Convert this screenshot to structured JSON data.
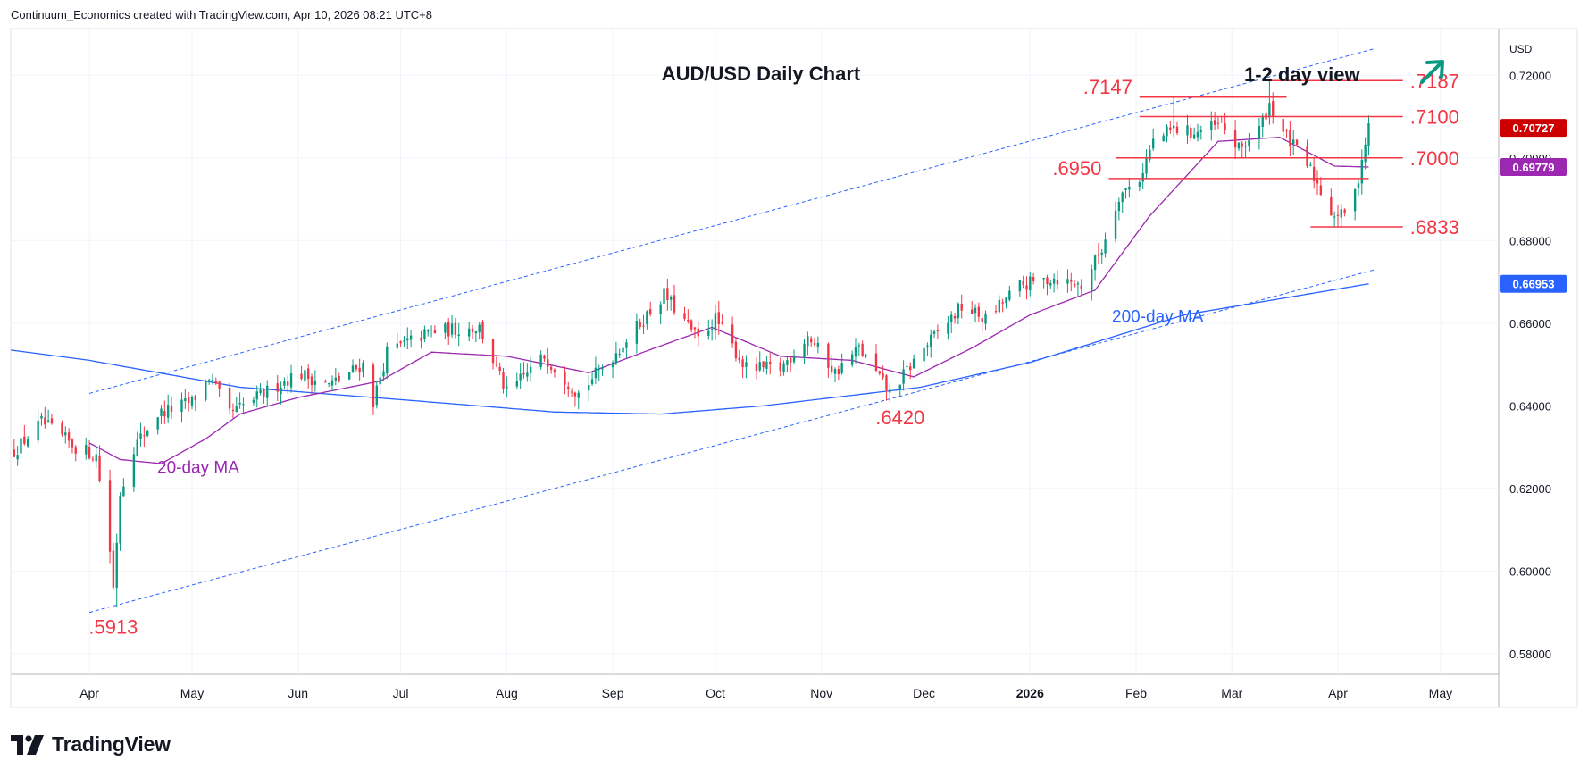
{
  "header": {
    "text": "Continuum_Economics created with TradingView.com, Apr 10, 2026 08:21 UTC+8"
  },
  "branding": {
    "logo_text": "TradingView",
    "logo_icon": "tradingview-logo-icon"
  },
  "colors": {
    "up": "#089981",
    "down": "#f23645",
    "ma20": "#9c27b0",
    "ma200": "#2962ff",
    "level_line": "#f23645",
    "level_text": "#f23645",
    "channel": "#2962ff",
    "arrow": "#089981",
    "price_tag": "#cc0000",
    "ma20_tag": "#9c27b0",
    "ma200_tag": "#2962ff"
  },
  "chart_data": {
    "type": "candlestick",
    "title": "AUD/USD Daily Chart",
    "view_label": "1-2 day view",
    "view_icon": "up-right-arrow-icon",
    "currency": "USD",
    "ylim": [
      0.575,
      0.7313
    ],
    "y_ticks": [
      0.58,
      0.6,
      0.62,
      0.64,
      0.66,
      0.68,
      0.7,
      0.72
    ],
    "y_tick_labels": [
      "0.58000",
      "0.60000",
      "0.62000",
      "0.64000",
      "0.66000",
      "0.68000",
      "0.70000",
      "0.72000"
    ],
    "x_axis": {
      "start": "2025-03-09",
      "end": "2026-05-18",
      "ticks": [
        {
          "label": "Apr",
          "date": "2025-04-01"
        },
        {
          "label": "May",
          "date": "2025-05-01"
        },
        {
          "label": "Jun",
          "date": "2025-06-01"
        },
        {
          "label": "Jul",
          "date": "2025-07-01"
        },
        {
          "label": "Aug",
          "date": "2025-08-01"
        },
        {
          "label": "Sep",
          "date": "2025-09-01"
        },
        {
          "label": "Oct",
          "date": "2025-10-01"
        },
        {
          "label": "Nov",
          "date": "2025-11-01"
        },
        {
          "label": "Dec",
          "date": "2025-12-01"
        },
        {
          "label": "2026",
          "date": "2026-01-01"
        },
        {
          "label": "Feb",
          "date": "2026-02-01"
        },
        {
          "label": "Mar",
          "date": "2026-03-01"
        },
        {
          "label": "Apr",
          "date": "2026-04-01"
        },
        {
          "label": "May",
          "date": "2026-05-01"
        }
      ]
    },
    "close_anchors": [
      [
        "2025-03-10",
        0.629
      ],
      [
        "2025-03-18",
        0.636
      ],
      [
        "2025-03-28",
        0.63
      ],
      [
        "2025-04-03",
        0.628
      ],
      [
        "2025-04-07",
        0.605
      ],
      [
        "2025-04-08",
        0.596
      ],
      [
        "2025-04-10",
        0.619
      ],
      [
        "2025-04-14",
        0.63
      ],
      [
        "2025-04-21",
        0.638
      ],
      [
        "2025-05-01",
        0.641
      ],
      [
        "2025-05-06",
        0.647
      ],
      [
        "2025-05-12",
        0.638
      ],
      [
        "2025-05-20",
        0.642
      ],
      [
        "2025-06-01",
        0.648
      ],
      [
        "2025-06-10",
        0.645
      ],
      [
        "2025-06-20",
        0.65
      ],
      [
        "2025-06-23",
        0.641
      ],
      [
        "2025-06-27",
        0.653
      ],
      [
        "2025-07-10",
        0.658
      ],
      [
        "2025-07-24",
        0.659
      ],
      [
        "2025-08-01",
        0.643
      ],
      [
        "2025-08-12",
        0.652
      ],
      [
        "2025-08-22",
        0.643
      ],
      [
        "2025-09-02",
        0.653
      ],
      [
        "2025-09-16",
        0.667
      ],
      [
        "2025-09-26",
        0.656
      ],
      [
        "2025-10-01",
        0.661
      ],
      [
        "2025-10-10",
        0.649
      ],
      [
        "2025-10-20",
        0.649
      ],
      [
        "2025-10-28",
        0.657
      ],
      [
        "2025-11-05",
        0.648
      ],
      [
        "2025-11-12",
        0.654
      ],
      [
        "2025-11-21",
        0.643
      ],
      [
        "2025-12-01",
        0.654
      ],
      [
        "2025-12-12",
        0.664
      ],
      [
        "2025-12-19",
        0.661
      ],
      [
        "2025-12-29",
        0.669
      ],
      [
        "2026-01-08",
        0.671
      ],
      [
        "2026-01-16",
        0.669
      ],
      [
        "2026-01-22",
        0.678
      ],
      [
        "2026-01-27",
        0.691
      ],
      [
        "2026-02-02",
        0.695
      ],
      [
        "2026-02-06",
        0.704
      ],
      [
        "2026-02-12",
        0.707
      ],
      [
        "2026-02-18",
        0.706
      ],
      [
        "2026-02-26",
        0.708
      ],
      [
        "2026-03-03",
        0.702
      ],
      [
        "2026-03-09",
        0.707
      ],
      [
        "2026-03-12",
        0.713
      ],
      [
        "2026-03-17",
        0.705
      ],
      [
        "2026-03-24",
        0.697
      ],
      [
        "2026-03-30",
        0.687
      ],
      [
        "2026-04-02",
        0.686
      ],
      [
        "2026-04-06",
        0.691
      ],
      [
        "2026-04-08",
        0.7
      ],
      [
        "2026-04-10",
        0.70727
      ]
    ],
    "ma20_anchors": [
      [
        "2025-04-01",
        0.631
      ],
      [
        "2025-04-10",
        0.627
      ],
      [
        "2025-04-22",
        0.626
      ],
      [
        "2025-05-05",
        0.632
      ],
      [
        "2025-05-15",
        0.638
      ],
      [
        "2025-06-01",
        0.642
      ],
      [
        "2025-06-25",
        0.646
      ],
      [
        "2025-07-10",
        0.653
      ],
      [
        "2025-08-01",
        0.652
      ],
      [
        "2025-08-25",
        0.648
      ],
      [
        "2025-09-10",
        0.653
      ],
      [
        "2025-09-30",
        0.659
      ],
      [
        "2025-10-20",
        0.652
      ],
      [
        "2025-11-10",
        0.651
      ],
      [
        "2025-11-28",
        0.647
      ],
      [
        "2025-12-15",
        0.654
      ],
      [
        "2026-01-01",
        0.662
      ],
      [
        "2026-01-20",
        0.668
      ],
      [
        "2026-02-05",
        0.686
      ],
      [
        "2026-02-25",
        0.704
      ],
      [
        "2026-03-15",
        0.705
      ],
      [
        "2026-03-31",
        0.698
      ],
      [
        "2026-04-10",
        0.69779
      ]
    ],
    "ma200_anchors": [
      [
        "2025-03-09",
        0.6535
      ],
      [
        "2025-04-01",
        0.651
      ],
      [
        "2025-05-15",
        0.6445
      ],
      [
        "2025-07-01",
        0.6415
      ],
      [
        "2025-08-15",
        0.6385
      ],
      [
        "2025-09-15",
        0.638
      ],
      [
        "2025-10-15",
        0.64
      ],
      [
        "2025-11-30",
        0.6445
      ],
      [
        "2026-01-01",
        0.6505
      ],
      [
        "2026-02-15",
        0.662
      ],
      [
        "2026-04-10",
        0.66953
      ]
    ],
    "series": [
      {
        "name": "AUD/USD",
        "last": 0.70727,
        "label": "0.70727"
      },
      {
        "name": "20-day MA",
        "last": 0.69779,
        "label": "0.69779"
      },
      {
        "name": "200-day MA",
        "last": 0.66953,
        "label": "0.66953"
      }
    ],
    "ma20_label": "20-day MA",
    "ma200_label": "200-day MA",
    "channel": {
      "lower": {
        "from": [
          "2025-04-01",
          0.59
        ],
        "to": [
          "2026-04-12",
          0.673
        ]
      },
      "upper": {
        "from": [
          "2025-04-01",
          0.643
        ],
        "to": [
          "2026-04-12",
          0.7265
        ]
      }
    },
    "levels": [
      {
        "value": 0.7187,
        "label": ".7187",
        "from": "2026-03-12",
        "to": "2026-04-20",
        "label_side": "right"
      },
      {
        "value": 0.7147,
        "label": ".7147",
        "from": "2026-02-02",
        "to": "2026-03-17",
        "label_side": "left"
      },
      {
        "value": 0.71,
        "label": ".7100",
        "from": "2026-02-02",
        "to": "2026-04-20",
        "label_side": "right"
      },
      {
        "value": 0.7,
        "label": ".7000",
        "from": "2026-01-26",
        "to": "2026-04-20",
        "label_side": "right"
      },
      {
        "value": 0.695,
        "label": ".6950",
        "from": "2026-01-24",
        "to": "2026-04-10",
        "label_side": "left"
      },
      {
        "value": 0.6833,
        "label": ".6833",
        "from": "2026-03-24",
        "to": "2026-04-20",
        "label_side": "right"
      }
    ],
    "annotations": [
      {
        "text": ".5913",
        "date": "2025-04-08",
        "value": 0.5913,
        "pos": "below"
      },
      {
        "text": ".6420",
        "date": "2025-11-24",
        "value": 0.642,
        "pos": "below"
      }
    ]
  }
}
